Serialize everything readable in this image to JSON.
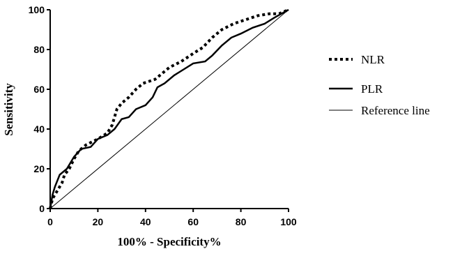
{
  "chart_data": {
    "type": "line",
    "xlabel": "100% - Specificity%",
    "ylabel": "Sensitivity",
    "xlim": [
      0,
      100
    ],
    "ylim": [
      0,
      100
    ],
    "xticks": [
      0,
      20,
      40,
      60,
      80,
      100
    ],
    "yticks": [
      0,
      20,
      40,
      60,
      80,
      100
    ],
    "grid": false,
    "legend": "right",
    "series": [
      {
        "name": "NLR",
        "color": "#000000",
        "style": "dotted",
        "x": [
          0,
          1,
          3,
          5,
          6,
          8,
          10,
          12,
          15,
          20,
          24,
          26,
          28,
          30,
          33,
          36,
          39,
          44,
          47,
          50,
          55,
          60,
          64,
          68,
          72,
          77,
          82,
          87,
          92,
          96,
          100
        ],
        "values": [
          0,
          5,
          9,
          13,
          17,
          20,
          25,
          29,
          32,
          35,
          38,
          42,
          50,
          53,
          56,
          60,
          63,
          65,
          68,
          71,
          74,
          78,
          81,
          86,
          90,
          93,
          95,
          97,
          98,
          98,
          100
        ]
      },
      {
        "name": "PLR",
        "color": "#000000",
        "style": "solid",
        "x": [
          0,
          1,
          2,
          4,
          7,
          10,
          13,
          17,
          20,
          24,
          27,
          30,
          33,
          36,
          40,
          43,
          45,
          48,
          52,
          56,
          60,
          65,
          68,
          72,
          76,
          80,
          85,
          90,
          94,
          97,
          100
        ],
        "values": [
          0,
          7,
          11,
          17,
          20,
          26,
          30,
          31,
          35,
          37,
          40,
          45,
          46,
          50,
          52,
          56,
          61,
          63,
          67,
          70,
          73,
          74,
          77,
          82,
          86,
          88,
          91,
          93,
          96,
          98,
          100
        ]
      },
      {
        "name": "Reference line",
        "color": "#000000",
        "style": "thin",
        "x": [
          0,
          100
        ],
        "values": [
          0,
          100
        ]
      }
    ]
  }
}
